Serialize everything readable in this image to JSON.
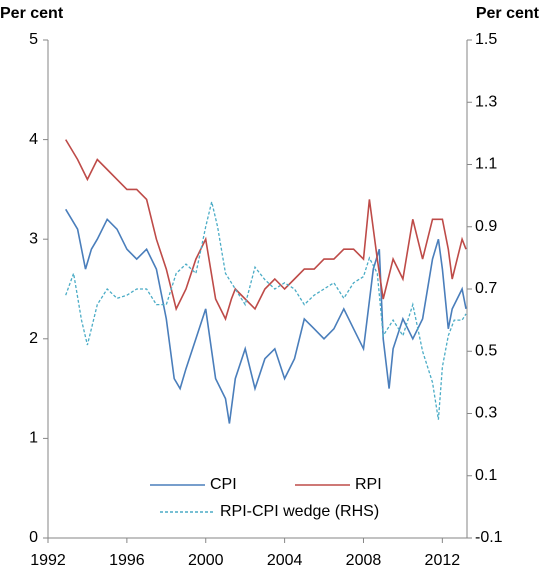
{
  "chart_data": {
    "type": "line",
    "y_label": "Per cent",
    "y2_label": "Per cent",
    "xlim": [
      1992,
      2013.25
    ],
    "xticks": [
      1992,
      1996,
      2000,
      2004,
      2008,
      2012
    ],
    "ylim": [
      0,
      5
    ],
    "yticks": [
      0,
      1,
      2,
      3,
      4,
      5
    ],
    "y2lim": [
      -0.1,
      1.5
    ],
    "y2ticks": [
      -0.1,
      0.1,
      0.3,
      0.5,
      0.7,
      0.9,
      1.1,
      1.3,
      1.5
    ],
    "legend": "lower center",
    "series": [
      {
        "name": "CPI",
        "color": "#4a7ebb",
        "x": [
          1992.9,
          1993.2,
          1993.5,
          1993.9,
          1994.2,
          1994.5,
          1995,
          1995.5,
          1996,
          1996.5,
          1997,
          1997.5,
          1998,
          1998.4,
          1998.7,
          1999,
          1999.5,
          2000,
          2000.5,
          2001,
          2001.2,
          2001.5,
          2002,
          2002.5,
          2003,
          2003.5,
          2004,
          2004.5,
          2005,
          2005.5,
          2006,
          2006.5,
          2007,
          2007.5,
          2008,
          2008.5,
          2008.8,
          2009,
          2009.3,
          2009.5,
          2010,
          2010.5,
          2011,
          2011.5,
          2011.8,
          2012,
          2012.3,
          2012.5,
          2013,
          2013.2
        ],
        "values": [
          3.3,
          3.2,
          3.1,
          2.7,
          2.9,
          3.0,
          3.2,
          3.1,
          2.9,
          2.8,
          2.9,
          2.7,
          2.2,
          1.6,
          1.5,
          1.7,
          2.0,
          2.3,
          1.6,
          1.4,
          1.15,
          1.6,
          1.9,
          1.5,
          1.8,
          1.9,
          1.6,
          1.8,
          2.2,
          2.1,
          2.0,
          2.1,
          2.3,
          2.1,
          1.9,
          2.7,
          2.9,
          2.0,
          1.5,
          1.9,
          2.2,
          2.0,
          2.2,
          2.8,
          3.0,
          2.7,
          2.1,
          2.3,
          2.5,
          2.3
        ]
      },
      {
        "name": "RPI",
        "color": "#be4b48",
        "x": [
          1992.9,
          1993.2,
          1993.5,
          1994,
          1994.5,
          1995,
          1995.5,
          1996,
          1996.5,
          1997,
          1997.5,
          1998,
          1998.5,
          1999,
          1999.5,
          2000,
          2000.5,
          2001,
          2001.3,
          2001.5,
          2002,
          2002.5,
          2003,
          2003.5,
          2004,
          2004.5,
          2005,
          2005.5,
          2006,
          2006.5,
          2007,
          2007.5,
          2008,
          2008.3,
          2008.7,
          2009,
          2009.5,
          2010,
          2010.5,
          2011,
          2011.5,
          2012,
          2012.3,
          2012.5,
          2013,
          2013.2
        ],
        "values": [
          4.0,
          3.9,
          3.8,
          3.6,
          3.8,
          3.7,
          3.6,
          3.5,
          3.5,
          3.4,
          3.0,
          2.7,
          2.3,
          2.5,
          2.8,
          3.0,
          2.4,
          2.2,
          2.4,
          2.5,
          2.4,
          2.3,
          2.5,
          2.6,
          2.5,
          2.6,
          2.7,
          2.7,
          2.8,
          2.8,
          2.9,
          2.9,
          2.8,
          3.4,
          2.8,
          2.4,
          2.8,
          2.6,
          3.2,
          2.8,
          3.2,
          3.2,
          2.9,
          2.6,
          3.0,
          2.9
        ]
      },
      {
        "name": "RPI-CPI wedge (RHS)",
        "color": "#4bacc6",
        "axis": "y2",
        "x": [
          1992.9,
          1993.3,
          1993.7,
          1994,
          1994.5,
          1995,
          1995.5,
          1996,
          1996.5,
          1997,
          1997.5,
          1998,
          1998.5,
          1999,
          1999.5,
          2000,
          2000.3,
          2000.6,
          2001,
          2001.5,
          2002,
          2002.5,
          2003,
          2003.5,
          2004,
          2004.5,
          2005,
          2005.5,
          2006,
          2006.5,
          2007,
          2007.5,
          2008,
          2008.3,
          2008.7,
          2009,
          2009.5,
          2010,
          2010.5,
          2011,
          2011.5,
          2011.8,
          2012,
          2012.3,
          2012.6,
          2013,
          2013.2
        ],
        "values": [
          0.68,
          0.75,
          0.6,
          0.52,
          0.65,
          0.7,
          0.67,
          0.68,
          0.7,
          0.7,
          0.65,
          0.65,
          0.75,
          0.78,
          0.75,
          0.9,
          0.98,
          0.9,
          0.75,
          0.7,
          0.65,
          0.77,
          0.73,
          0.7,
          0.72,
          0.7,
          0.65,
          0.68,
          0.7,
          0.72,
          0.67,
          0.72,
          0.74,
          0.8,
          0.75,
          0.55,
          0.6,
          0.55,
          0.65,
          0.5,
          0.4,
          0.28,
          0.45,
          0.55,
          0.6,
          0.6,
          0.62
        ]
      }
    ]
  }
}
